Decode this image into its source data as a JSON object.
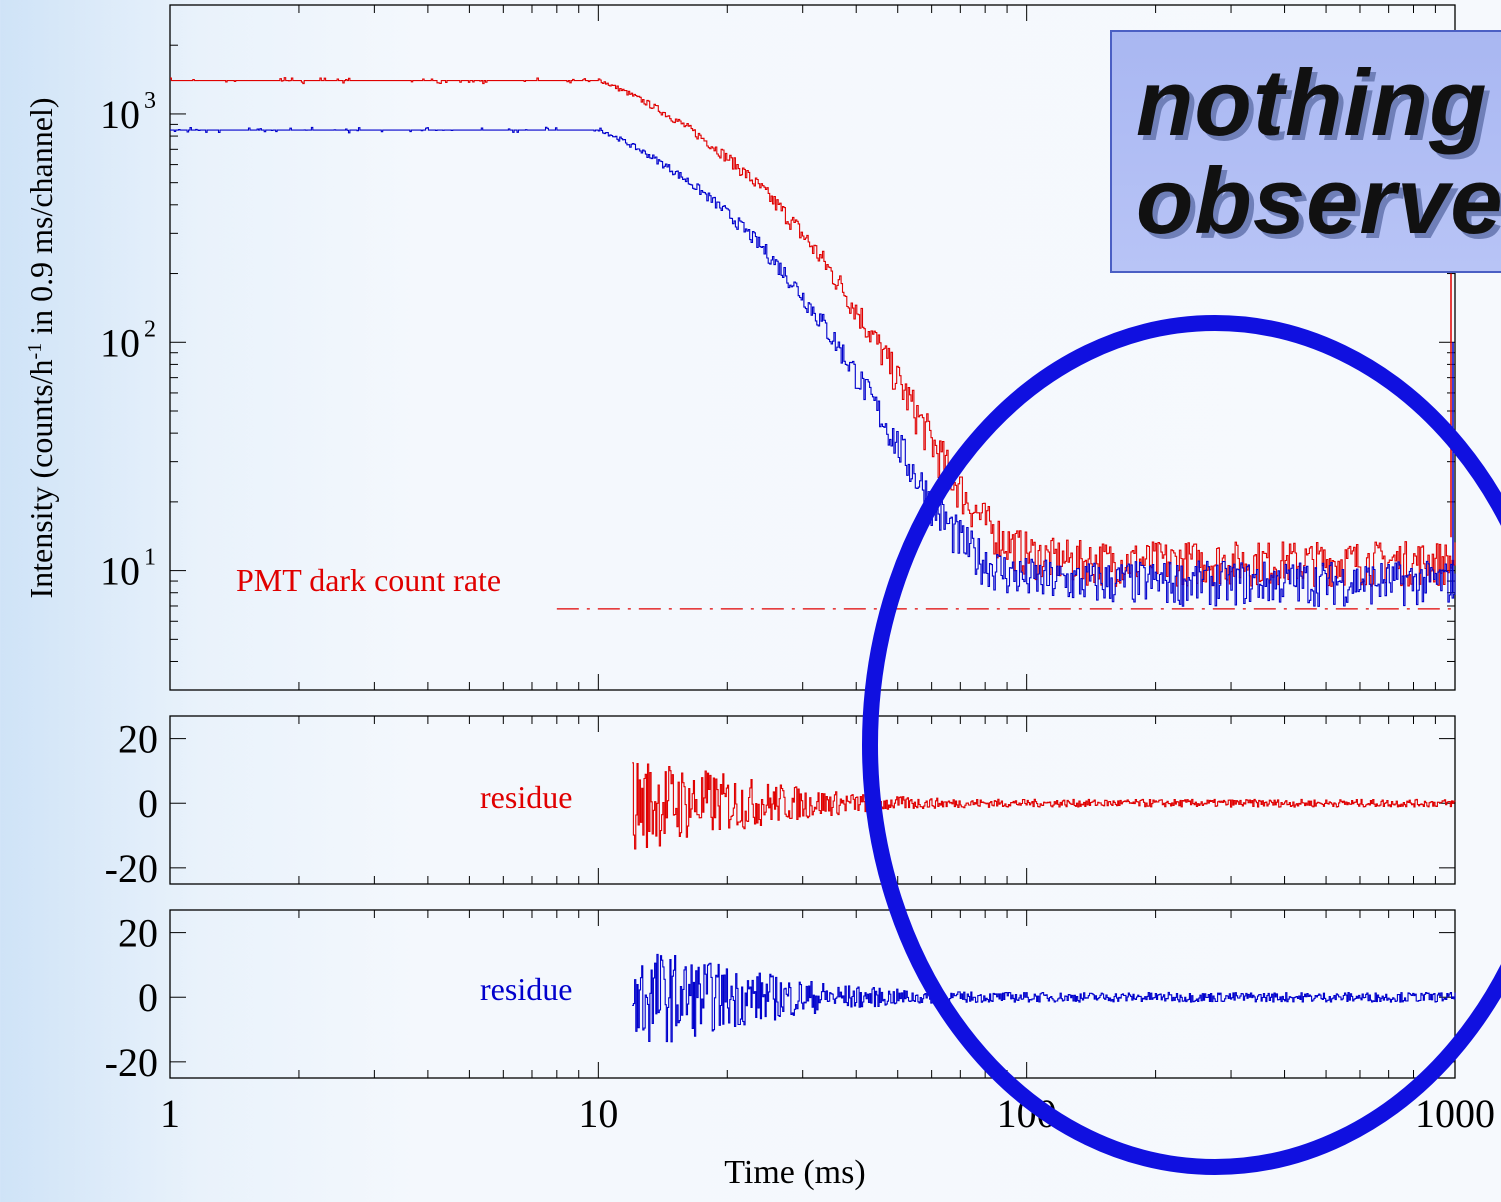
{
  "chart_data": [
    {
      "type": "line",
      "panel": "main",
      "xscale": "log",
      "yscale": "log",
      "xlim": [
        1,
        1000
      ],
      "ylim": [
        3,
        3000
      ],
      "ylabel_parts": [
        "Intensity (counts/h",
        "-1",
        " in 0.9 ms/channel)"
      ],
      "yticks": [
        {
          "value": 10,
          "base": "10",
          "exp": "1"
        },
        {
          "value": 100,
          "base": "10",
          "exp": "2"
        },
        {
          "value": 1000,
          "base": "10",
          "exp": "3"
        }
      ],
      "series": [
        {
          "color": "#e00000",
          "plateau": 1400,
          "start_decay": 10,
          "tau_ms": 12.5,
          "background": 11
        },
        {
          "color": "#0000cc",
          "plateau": 850,
          "start_decay": 10,
          "tau_ms": 11.5,
          "background": 9
        }
      ],
      "reference_line": {
        "label": "PMT dark count rate",
        "y": 6.8,
        "x_start": 8,
        "x_end": 1000,
        "color": "#e00000",
        "style": "dash-dot"
      }
    },
    {
      "type": "line",
      "panel": "residual-red",
      "label": "residue",
      "color": "#e00000",
      "xscale": "log",
      "xlim": [
        1,
        1000
      ],
      "ylim": [
        -25,
        27
      ],
      "yticks": [
        20,
        0,
        -20
      ],
      "x_start": 12,
      "amplitude_early": 14,
      "amplitude_late": 1.2
    },
    {
      "type": "line",
      "panel": "residual-blue",
      "label": "residue",
      "color": "#0000cc",
      "xscale": "log",
      "xlim": [
        1,
        1000
      ],
      "ylim": [
        -25,
        27
      ],
      "yticks": [
        20,
        0,
        -20
      ],
      "x_start": 12,
      "amplitude_early": 15,
      "amplitude_late": 1.5,
      "xlabel": "Time (ms)",
      "xticks": [
        "1",
        "10",
        "100",
        "1000"
      ]
    }
  ],
  "callout": {
    "line1": "nothing",
    "line2": "observed"
  },
  "highlight": {
    "shape": "ellipse",
    "color": "#1010e0"
  }
}
